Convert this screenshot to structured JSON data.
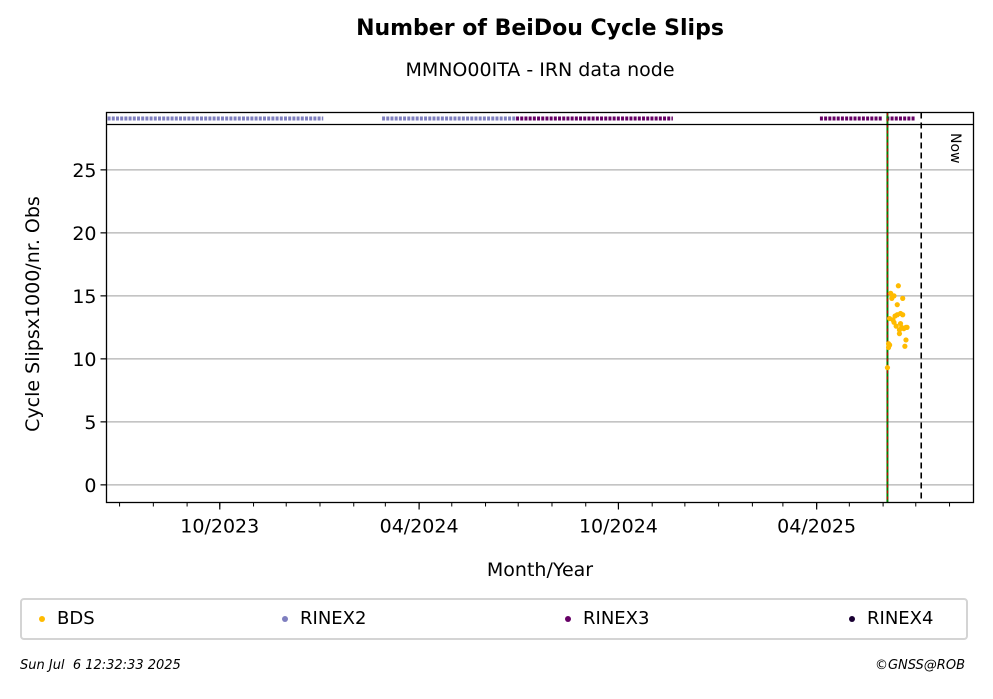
{
  "chart_data": {
    "type": "scatter",
    "title": "Number of BeiDou Cycle Slips",
    "subtitle": "MMNO00ITA - IRN data node",
    "xlabel": "Month/Year",
    "ylabel": "Cycle Slipsx1000/nr. Obs",
    "xlim": [
      "2023-06-19",
      "2025-08-23"
    ],
    "ylim": [
      -1.4,
      28.6
    ],
    "yticks": [
      0,
      5,
      10,
      15,
      20,
      25
    ],
    "xticks": [
      {
        "date": "2023-10-01",
        "label": "10/2023"
      },
      {
        "date": "2024-04-01",
        "label": "04/2024"
      },
      {
        "date": "2024-10-01",
        "label": "10/2024"
      },
      {
        "date": "2025-04-01",
        "label": "04/2025"
      }
    ],
    "grid": "horizontal",
    "now_label": "Now",
    "now_date": "2025-07-06",
    "vertical_line_date": "2025-06-05",
    "series": [
      {
        "name": "BDS",
        "color": "#ffbb00",
        "points": [
          {
            "x": "2025-06-05",
            "y": 9.3
          },
          {
            "x": "2025-06-06",
            "y": 11.2
          },
          {
            "x": "2025-06-06",
            "y": 10.9
          },
          {
            "x": "2025-06-07",
            "y": 11.1
          },
          {
            "x": "2025-06-07",
            "y": 13.2
          },
          {
            "x": "2025-06-08",
            "y": 15.2
          },
          {
            "x": "2025-06-09",
            "y": 14.8
          },
          {
            "x": "2025-06-10",
            "y": 13.1
          },
          {
            "x": "2025-06-11",
            "y": 15.0
          },
          {
            "x": "2025-06-11",
            "y": 12.9
          },
          {
            "x": "2025-06-12",
            "y": 13.4
          },
          {
            "x": "2025-06-13",
            "y": 12.6
          },
          {
            "x": "2025-06-14",
            "y": 14.3
          },
          {
            "x": "2025-06-14",
            "y": 13.5
          },
          {
            "x": "2025-06-15",
            "y": 15.8
          },
          {
            "x": "2025-06-16",
            "y": 12.3
          },
          {
            "x": "2025-06-16",
            "y": 12.0
          },
          {
            "x": "2025-06-17",
            "y": 13.6
          },
          {
            "x": "2025-06-17",
            "y": 12.8
          },
          {
            "x": "2025-06-18",
            "y": 12.5
          },
          {
            "x": "2025-06-19",
            "y": 13.5
          },
          {
            "x": "2025-06-19",
            "y": 14.8
          },
          {
            "x": "2025-06-20",
            "y": 12.4
          },
          {
            "x": "2025-06-21",
            "y": 11.0
          },
          {
            "x": "2025-06-22",
            "y": 11.5
          },
          {
            "x": "2025-06-22",
            "y": 12.5
          },
          {
            "x": "2025-06-23",
            "y": 12.5
          }
        ]
      },
      {
        "name": "RINEX2",
        "color": "#7f7fbf",
        "ranges": [
          [
            "2023-06-20",
            "2024-01-04"
          ],
          [
            "2024-02-27",
            "2024-06-29"
          ]
        ]
      },
      {
        "name": "RINEX3",
        "color": "#660066",
        "ranges": [
          [
            "2024-06-29",
            "2024-11-20"
          ],
          [
            "2025-04-04",
            "2025-05-31"
          ],
          [
            "2025-06-04",
            "2025-06-30"
          ]
        ]
      },
      {
        "name": "RINEX4",
        "color": "#1a0033",
        "ranges": []
      }
    ]
  },
  "footer": {
    "timestamp": "Sun Jul  6 12:32:33 2025",
    "credit": "©GNSS@ROB"
  }
}
